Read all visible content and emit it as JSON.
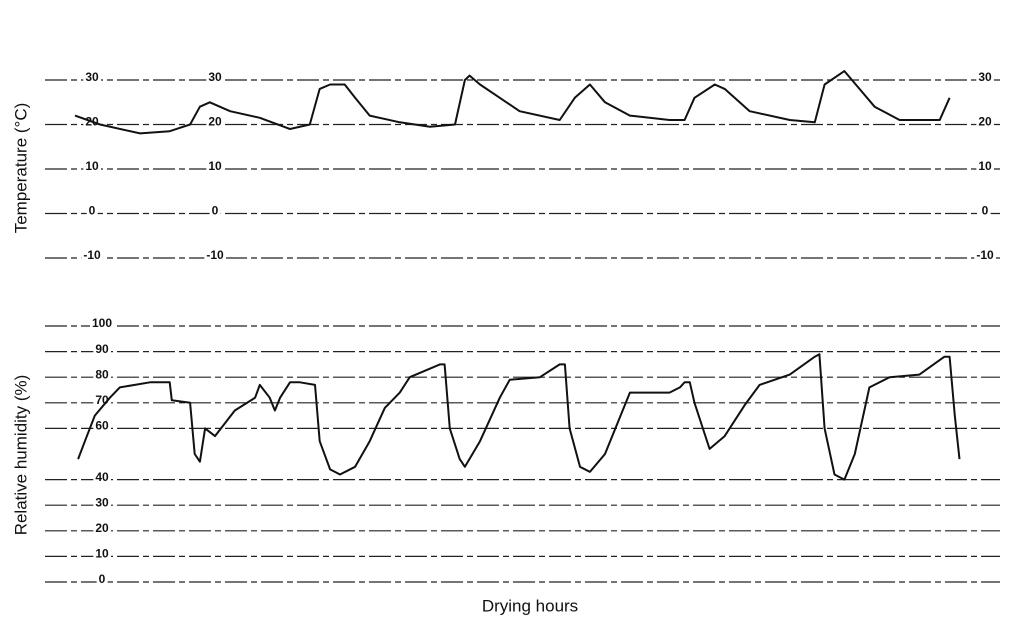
{
  "chart_data": [
    {
      "type": "line",
      "ylabel": "Temperature (°C)",
      "xlim": [
        0,
        170
      ],
      "ylim": [
        -10,
        30
      ],
      "yticks": [
        -10,
        0,
        10,
        20,
        30
      ],
      "grid": true,
      "color": "#111111",
      "x": [
        0,
        4.8,
        12.5,
        18.2,
        22.1,
        24,
        25.9,
        29.8,
        35.5,
        41.3,
        45.1,
        47,
        49,
        51.8,
        53.8,
        56.6,
        62.4,
        68.2,
        73,
        74.9,
        75.8,
        77.8,
        81.6,
        85.4,
        93.1,
        96,
        98.9,
        101.8,
        106.6,
        114.2,
        117.1,
        119,
        122.9,
        124.8,
        129.6,
        137.3,
        142.1,
        144,
        147.8,
        150.7,
        153.6,
        158.4,
        166.1,
        168
      ],
      "values": [
        22,
        20,
        18,
        18.5,
        20,
        24,
        25,
        23,
        21.5,
        19,
        20,
        28,
        29,
        29,
        26,
        22,
        20.5,
        19.5,
        20,
        30,
        31,
        29,
        26,
        23,
        21,
        26,
        29,
        25,
        22,
        21,
        21,
        26,
        29,
        28,
        23,
        21,
        20.5,
        29,
        32,
        28,
        24,
        21,
        21,
        26
      ]
    },
    {
      "type": "line",
      "ylabel": "Relative humidity (%)",
      "xlabel": "Drying hours",
      "xlim": [
        0,
        170
      ],
      "ylim": [
        0,
        100
      ],
      "yticks": [
        0,
        10,
        20,
        30,
        40,
        60,
        70,
        80,
        90,
        100
      ],
      "grid": true,
      "color": "#111111",
      "x": [
        0.6,
        1.9,
        3.8,
        6.7,
        8.6,
        14.4,
        18.2,
        18.6,
        22.1,
        23,
        24,
        25,
        26.9,
        30.7,
        34.6,
        35.5,
        37.4,
        38.4,
        39.4,
        41.3,
        43.2,
        46.1,
        47,
        49,
        50.9,
        53.8,
        56.6,
        59.5,
        62.4,
        64.3,
        70.1,
        71,
        72,
        73.9,
        74.9,
        77.8,
        81.6,
        83.5,
        89.3,
        93.1,
        94.1,
        95,
        97,
        98.9,
        101.8,
        106.6,
        114.2,
        116.2,
        117.1,
        118.1,
        119,
        121.9,
        124.8,
        128.6,
        131.5,
        137.3,
        142.1,
        143,
        144,
        145.9,
        147.8,
        149.8,
        152.6,
        156.5,
        162.2,
        167,
        168,
        169,
        169.9
      ],
      "values": [
        48,
        55,
        65,
        72,
        76,
        78,
        78,
        71,
        70,
        50,
        47,
        60,
        57,
        67,
        72,
        77,
        72,
        67,
        72,
        78,
        78,
        77,
        55,
        44,
        42,
        45,
        55,
        68,
        74,
        80,
        85,
        85,
        60,
        48,
        45,
        55,
        72,
        79,
        80,
        85,
        85,
        60,
        45,
        43,
        50,
        74,
        74,
        76,
        78,
        78,
        70,
        52,
        57,
        69,
        77,
        81,
        88,
        89,
        60,
        42,
        40,
        50,
        76,
        80,
        81,
        88,
        88,
        65,
        48
      ]
    }
  ]
}
